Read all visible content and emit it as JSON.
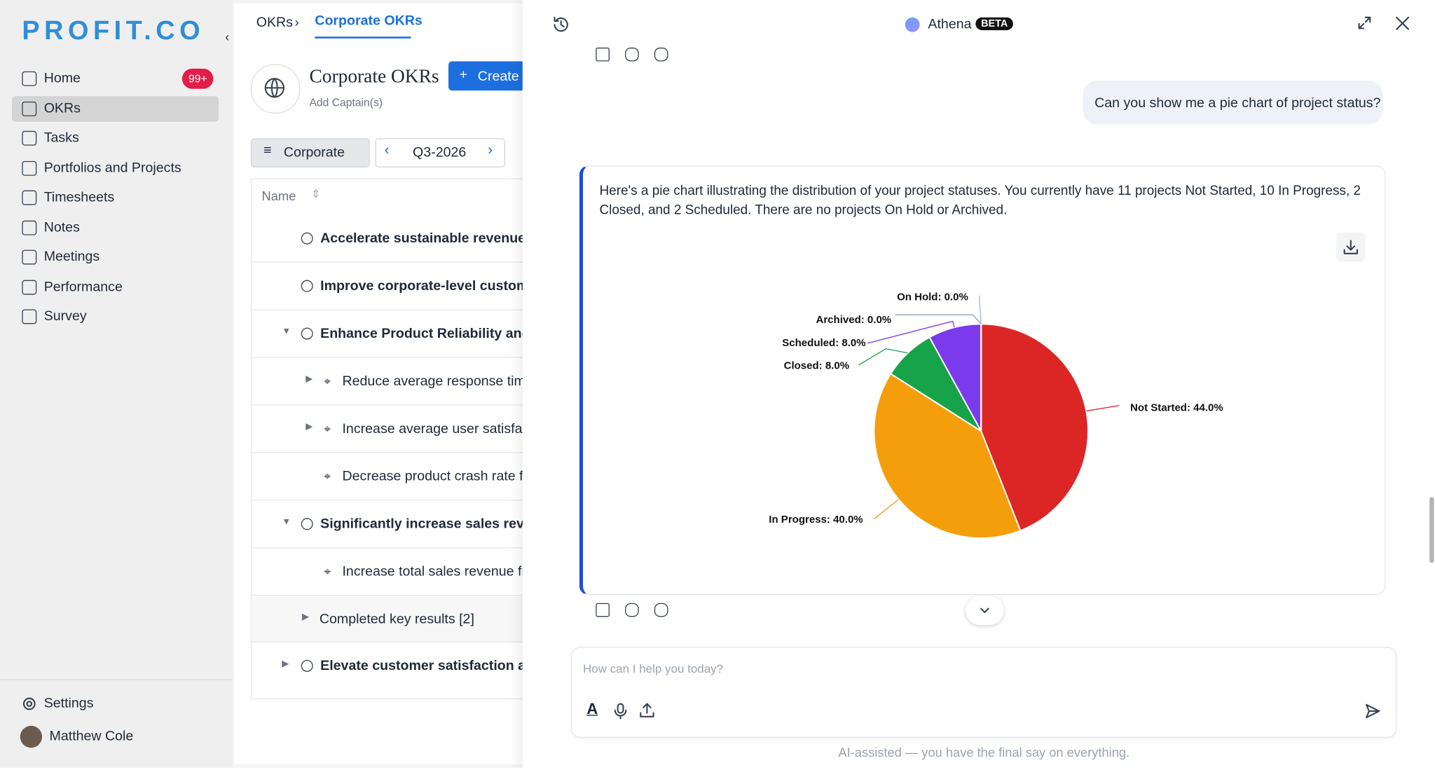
{
  "sidebar": {
    "logo": "PROFIT.CO",
    "nav": [
      {
        "label": "Home",
        "badge": "99+"
      },
      {
        "label": "OKRs"
      },
      {
        "label": "Tasks"
      },
      {
        "label": "Portfolios and Projects"
      },
      {
        "label": "Timesheets"
      },
      {
        "label": "Notes"
      },
      {
        "label": "Meetings"
      },
      {
        "label": "Performance"
      },
      {
        "label": "Survey"
      }
    ],
    "settings": "Settings",
    "user": "Matthew Cole"
  },
  "okr_panel": {
    "breadcrumb": [
      "OKRs",
      "Corporate OKRs"
    ],
    "title": "Corporate OKRs",
    "create_button": "Create",
    "add_captains": "Add Captain(s)",
    "filter": "Corporate",
    "period": "Q3-2026",
    "column_header": "Name",
    "rows": [
      {
        "text": "Accelerate sustainable revenue g",
        "kind": "objective"
      },
      {
        "text": "Improve corporate-level custome",
        "kind": "objective"
      },
      {
        "text": "Enhance Product Reliability and U",
        "kind": "objective"
      },
      {
        "text": "Reduce average response time",
        "kind": "key-result"
      },
      {
        "text": "Increase average user satisfact",
        "kind": "key-result"
      },
      {
        "text": "Decrease product crash rate fr",
        "kind": "key-result"
      },
      {
        "text": "Significantly increase sales reven",
        "kind": "objective"
      },
      {
        "text": "Increase total sales revenue fro",
        "kind": "key-result"
      },
      {
        "text": "Completed key results [2]",
        "kind": "group"
      },
      {
        "text": "Elevate customer satisfaction an",
        "kind": "objective"
      }
    ]
  },
  "chat": {
    "title": "Athena",
    "badge": "BETA",
    "user_message": "Can you show me a pie chart of project status?",
    "assistant_message": "Here's a pie chart illustrating the distribution of your project statuses. You currently have 11 projects Not Started, 10 In Progress, 2 Closed, and 2 Scheduled. There are no projects On Hold or Archived.",
    "chart": {
      "type": "pie",
      "values": [
        44,
        40,
        8,
        8,
        0,
        0
      ],
      "value_labels": [
        "Not Started: 44.0%",
        "In Progress: 40.0%",
        "Closed: 8.0%",
        "Scheduled: 8.0%",
        "Archived: 0.0%",
        "On Hold: 0.0%"
      ],
      "colors": [
        "#dc2626",
        "#f59e0b",
        "#16a34a",
        "#7c3aed",
        "#94a3b8",
        "#a5b4cf"
      ]
    },
    "input_placeholder": "How can I help you today?",
    "disclaimer": "AI-assisted — you have the final say on everything."
  }
}
